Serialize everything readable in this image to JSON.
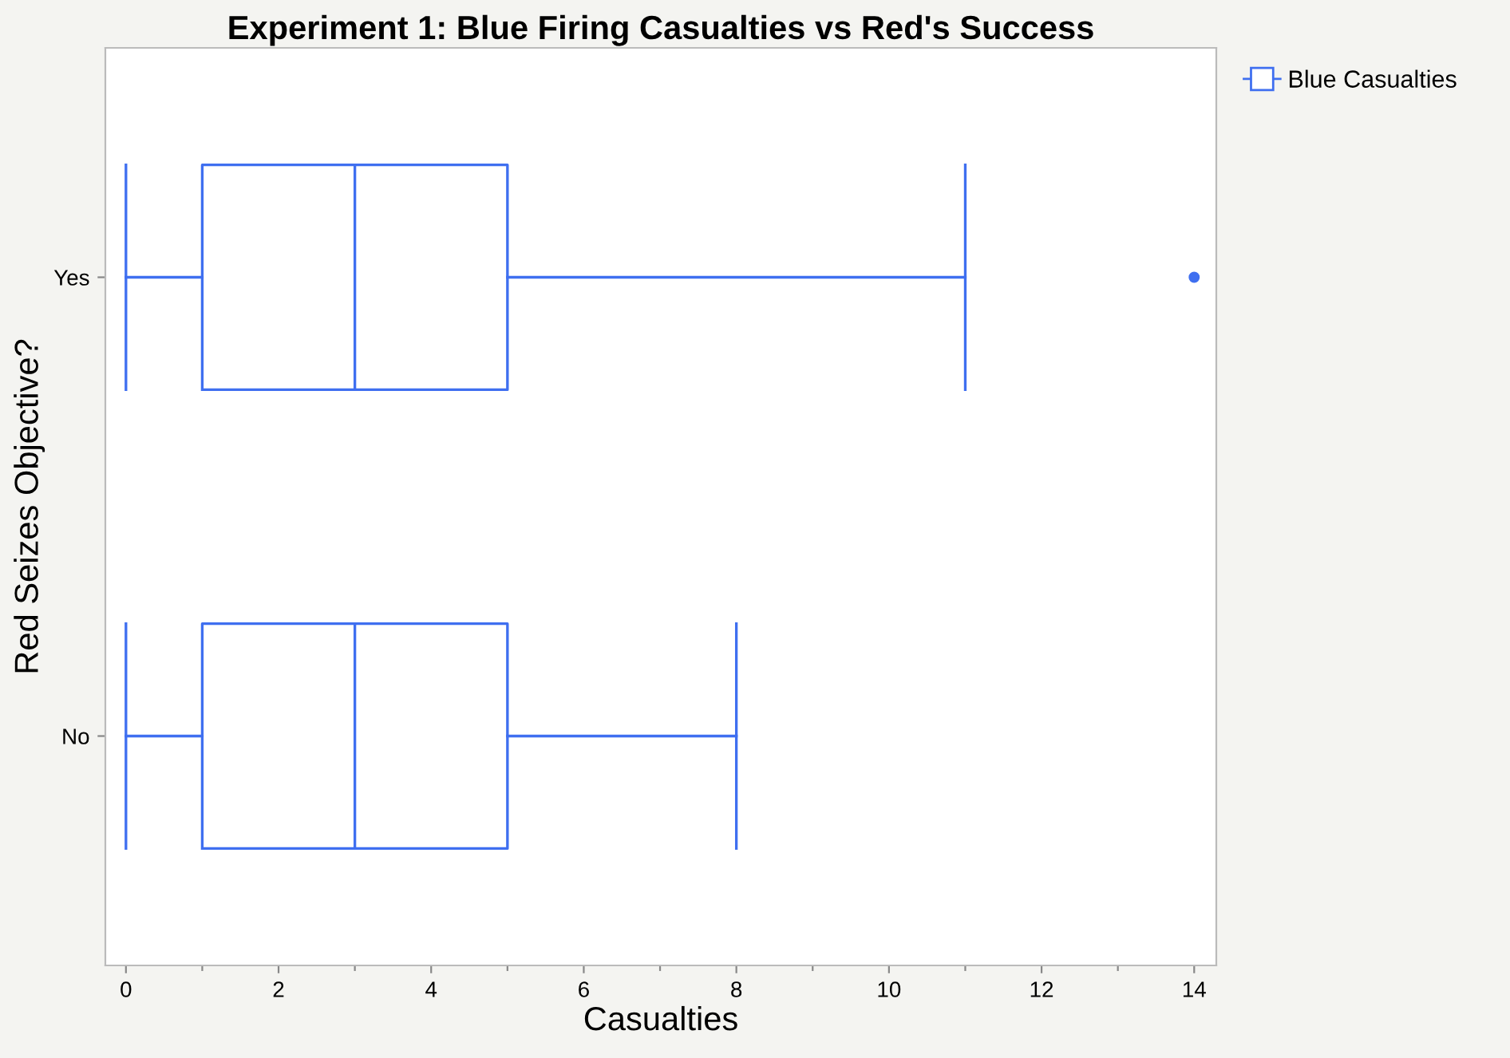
{
  "chart_data": {
    "type": "box",
    "title": "Experiment 1: Blue Firing Casualties vs Red's Success",
    "xlabel": "Casualties",
    "ylabel": "Red Seizes Objective?",
    "orientation": "horizontal",
    "categories": [
      "Yes",
      "No"
    ],
    "series": [
      {
        "name": "Blue Casualties",
        "color": "#3f6ff0",
        "boxes": [
          {
            "low": 0,
            "q1": 1,
            "median": 3,
            "q3": 5,
            "high": 11,
            "outliers": [
              14
            ]
          },
          {
            "low": 0,
            "q1": 1,
            "median": 3,
            "q3": 5,
            "high": 8
          }
        ]
      }
    ],
    "xlim": [
      -0.27,
      14.29
    ],
    "xticks": [
      0,
      {
        "value": 1,
        "label": null
      },
      2,
      {
        "value": 3,
        "label": null
      },
      4,
      {
        "value": 5,
        "label": null
      },
      6,
      {
        "value": 7,
        "label": null
      },
      8,
      {
        "value": 9,
        "label": null
      },
      10,
      {
        "value": 11,
        "label": null
      },
      12,
      {
        "value": 13,
        "label": null
      },
      14
    ],
    "grid": false,
    "legend": "top right"
  }
}
